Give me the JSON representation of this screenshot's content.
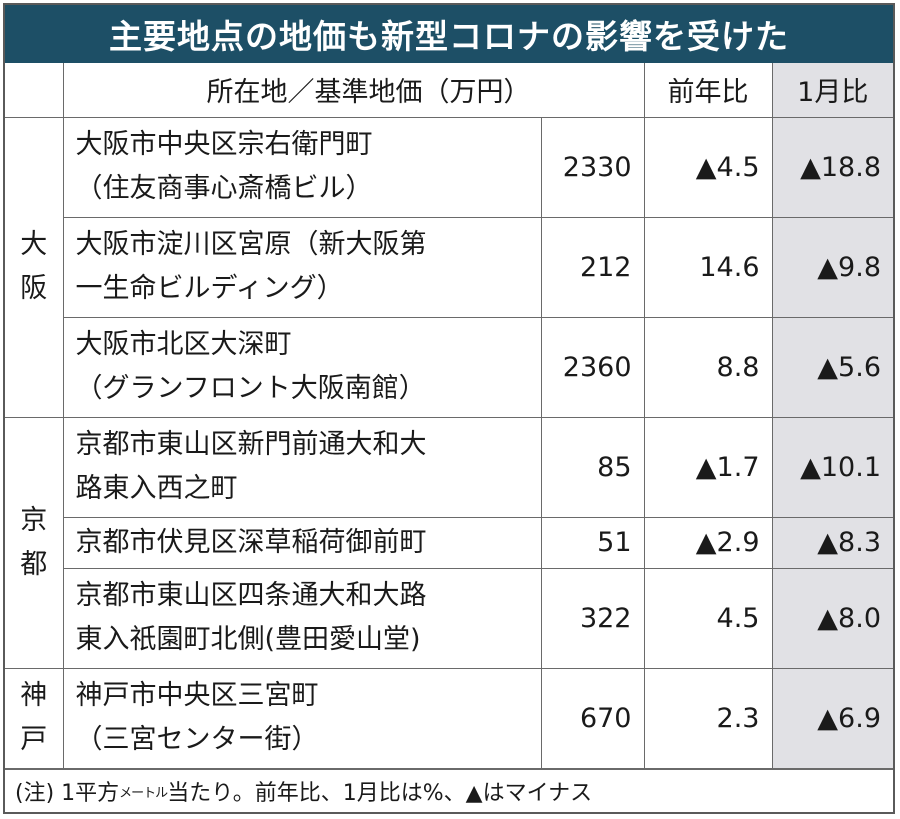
{
  "title": "主要地点の地価も新型コロナの影響を受けた",
  "header": {
    "location": "所在地／基準地価（万円）",
    "yoy": "前年比",
    "jan": "1月比"
  },
  "regions": {
    "osaka": "大\n阪",
    "kyoto": "京\n都",
    "kobe": "神\n戸"
  },
  "rows": [
    {
      "line1": "大阪市中央区宗右衛門町",
      "line2": "（住友商事心斎橋ビル）",
      "price": "2330",
      "yoy": "▲4.5",
      "jan": "▲18.8"
    },
    {
      "line1": "大阪市淀川区宮原（新大阪第",
      "line2": "一生命ビルディング）",
      "price": "212",
      "yoy": "14.6",
      "jan": "▲9.8"
    },
    {
      "line1": "大阪市北区大深町",
      "line2": "（グランフロント大阪南館）",
      "price": "2360",
      "yoy": "8.8",
      "jan": "▲5.6"
    },
    {
      "line1": "京都市東山区新門前通大和大",
      "line2": "路東入西之町",
      "price": "85",
      "yoy": "▲1.7",
      "jan": "▲10.1"
    },
    {
      "line1": "京都市伏見区深草稲荷御前町",
      "line2": "",
      "price": "51",
      "yoy": "▲2.9",
      "jan": "▲8.3"
    },
    {
      "line1": "京都市東山区四条通大和大路",
      "line2": "東入祇園町北側(豊田愛山堂)",
      "price": "322",
      "yoy": "4.5",
      "jan": "▲8.0"
    },
    {
      "line1": "神戸市中央区三宮町",
      "line2": "（三宮センター街）",
      "price": "670",
      "yoy": "2.3",
      "jan": "▲6.9"
    }
  ],
  "note": {
    "prefix": "(注) 1平方",
    "unit": "メートル",
    "suffix": "当たり。前年比、1月比は%、▲はマイナス"
  }
}
